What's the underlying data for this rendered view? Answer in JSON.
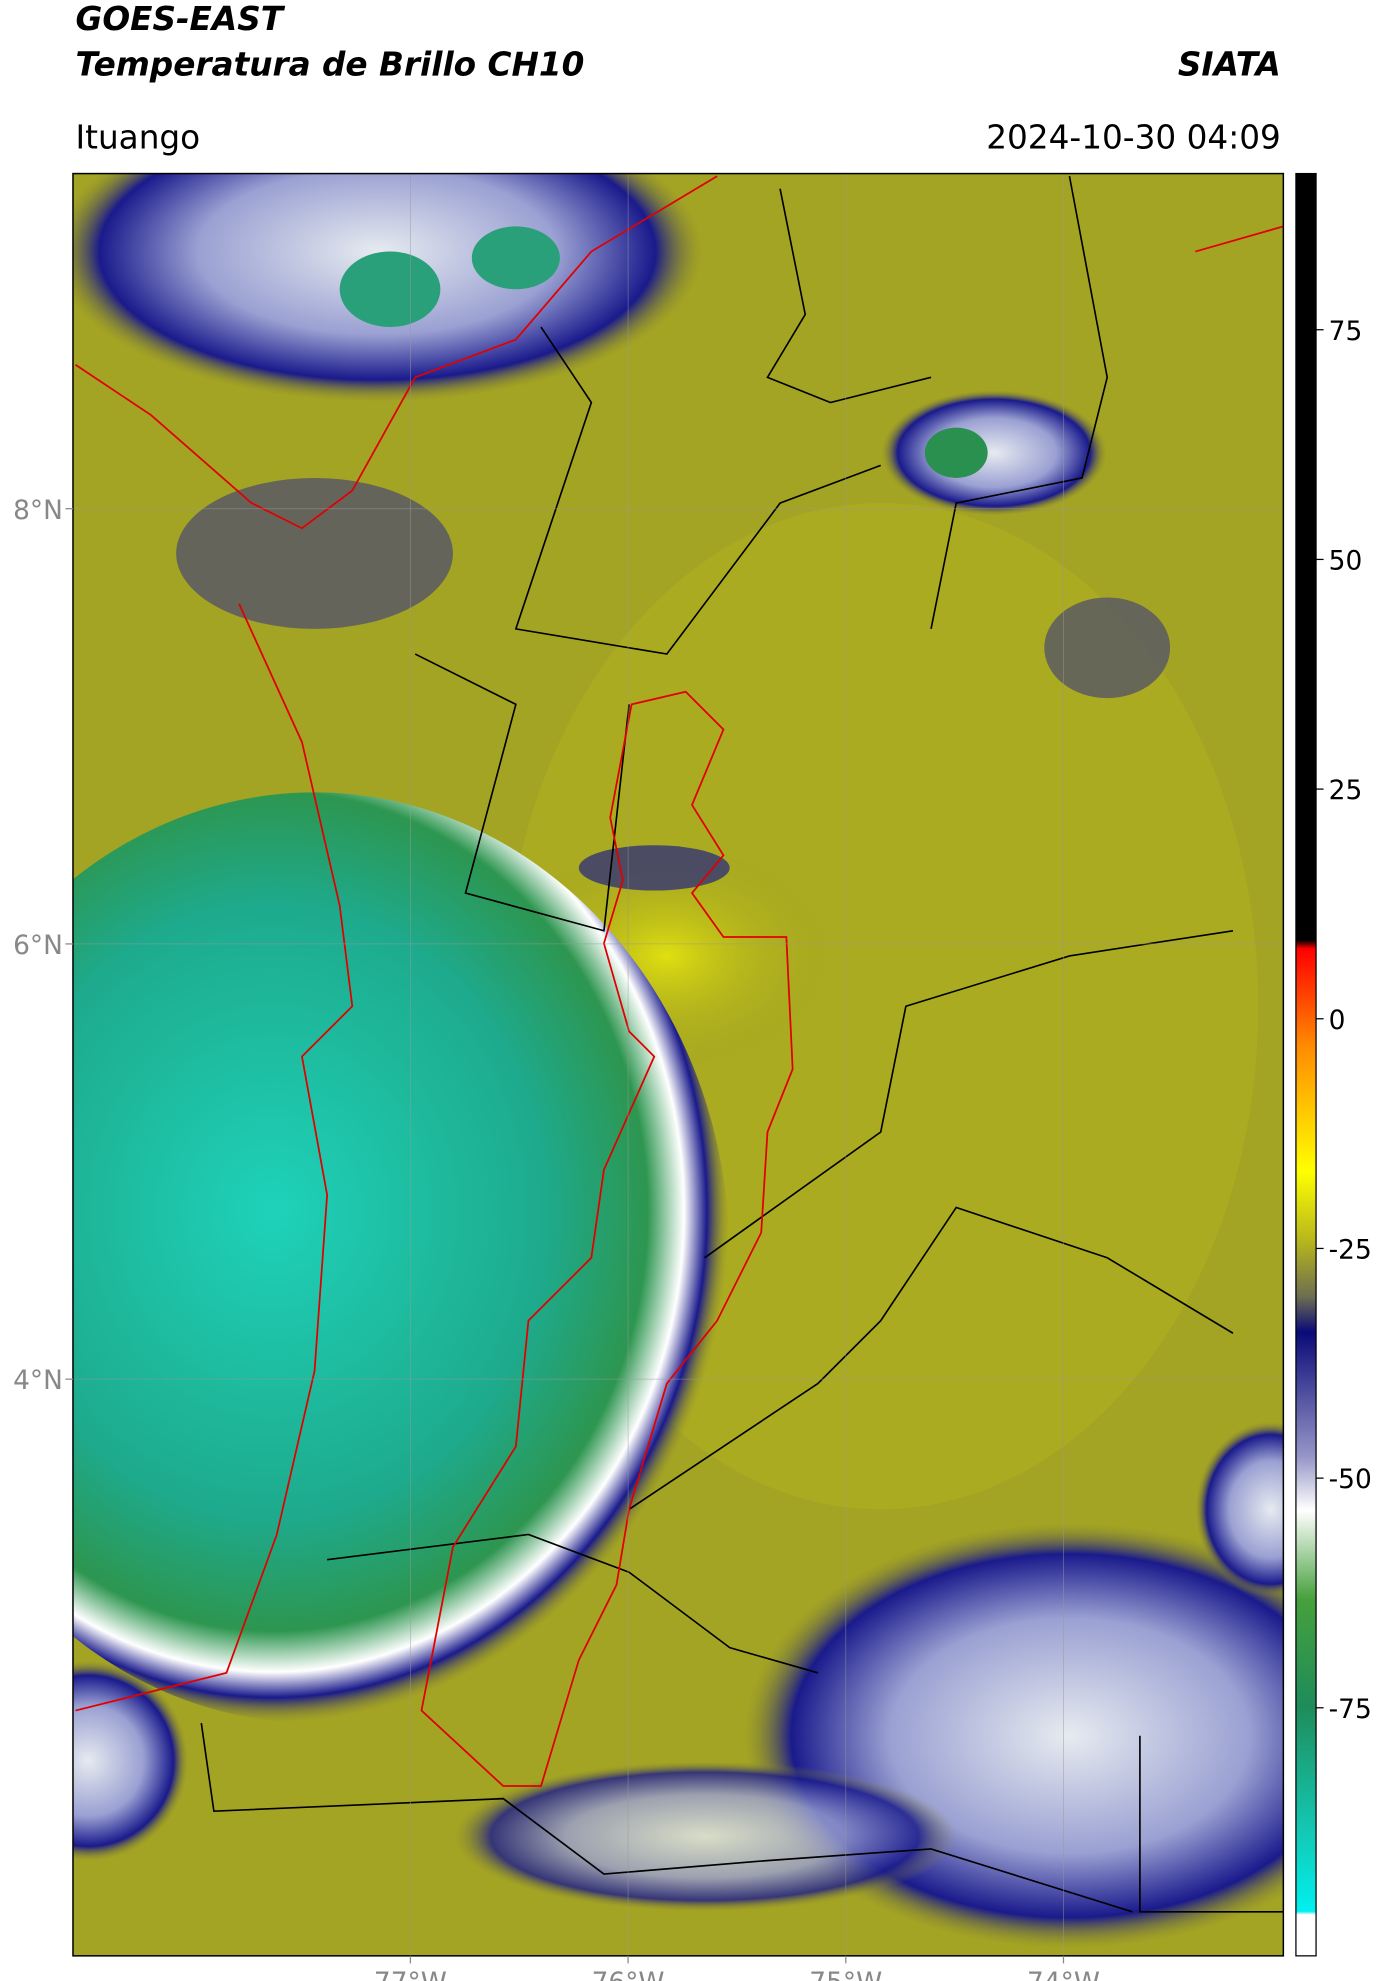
{
  "header": {
    "title": "GOES-EAST",
    "subtitle": "Temperatura de Brillo CH10",
    "agency": "SIATA",
    "place": "Ituango",
    "datetime": "2024-10-30 04:09"
  },
  "map": {
    "type": "satellite-map",
    "xlim": [
      -78.55,
      -72.99
    ],
    "ylim": [
      1.35,
      9.54
    ],
    "xticks": [
      {
        "value": -77,
        "label": "77°W"
      },
      {
        "value": -76,
        "label": "76°W"
      },
      {
        "value": -75,
        "label": "75°W"
      },
      {
        "value": -74,
        "label": "74°W"
      }
    ],
    "yticks": [
      {
        "value": 8,
        "label": "8°N"
      },
      {
        "value": 6,
        "label": "6°N"
      },
      {
        "value": 4,
        "label": "4°N"
      }
    ],
    "grid": true
  },
  "colorbar": {
    "clim": [
      -102,
      92
    ],
    "ticks": [
      75,
      50,
      25,
      0,
      -25,
      -50,
      -75
    ]
  }
}
